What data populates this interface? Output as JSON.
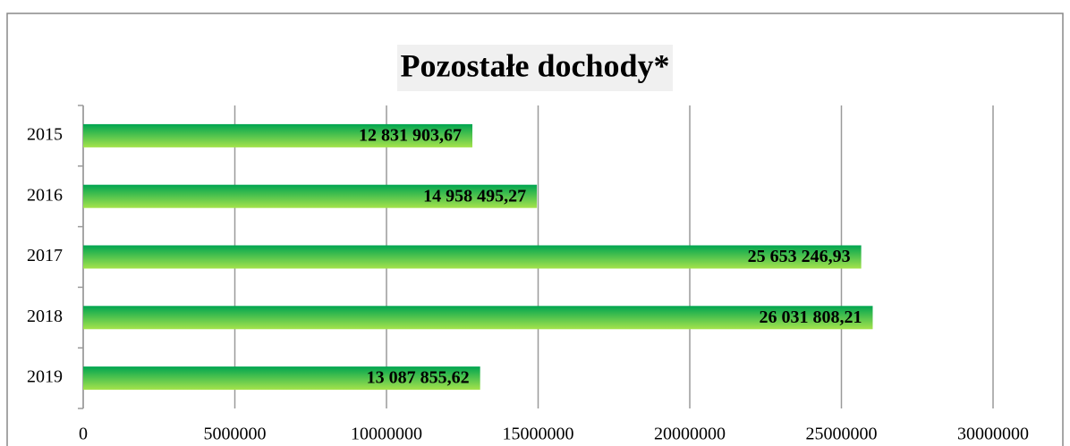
{
  "chart_data": {
    "type": "bar",
    "orientation": "horizontal",
    "title": "Pozostałe dochody*",
    "categories": [
      "2015",
      "2016",
      "2017",
      "2018",
      "2019"
    ],
    "values": [
      12831903.67,
      14958495.27,
      25653246.93,
      26031808.21,
      13087855.62
    ],
    "value_labels": [
      "12 831 903,67",
      "14 958 495,27",
      "25 653 246,93",
      "26 031 808,21",
      "13 087 855,62"
    ],
    "color": "#1aae4a",
    "xlim": [
      0,
      30000000
    ],
    "xticks": [
      0,
      5000000,
      10000000,
      15000000,
      20000000,
      25000000,
      30000000
    ],
    "grid": true
  }
}
